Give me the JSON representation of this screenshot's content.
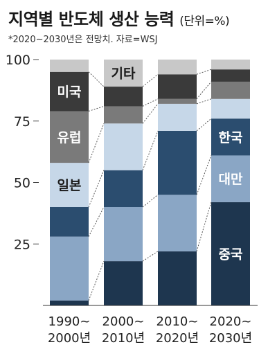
{
  "chart_data": {
    "type": "bar",
    "stacked": true,
    "title": "지역별 반도체 생산 능력",
    "title_unit": "(단위=%)",
    "note": "*2020~2030년은 전망치. 자료=WSJ",
    "categories": [
      [
        "1990~",
        "2000년"
      ],
      [
        "2000~",
        "2010년"
      ],
      [
        "2010~",
        "2020년"
      ],
      [
        "2020~",
        "2030년"
      ]
    ],
    "ylim": [
      0,
      100
    ],
    "yticks": [
      "100",
      "75",
      "50",
      "25"
    ],
    "series": [
      {
        "name": "중국",
        "color": "#1e364f",
        "values": [
          2,
          18,
          22,
          42
        ]
      },
      {
        "name": "대만",
        "color": "#8aa6c5",
        "values": [
          26,
          22,
          23,
          19
        ]
      },
      {
        "name": "한국",
        "color": "#2b4d6f",
        "values": [
          12,
          15,
          26,
          15
        ]
      },
      {
        "name": "일본",
        "color": "#c6d7e8",
        "values": [
          18,
          19,
          11,
          8
        ]
      },
      {
        "name": "유럽",
        "color": "#7a7a7a",
        "values": [
          21,
          7,
          2,
          7
        ]
      },
      {
        "name": "미국",
        "color": "#3a3a3a",
        "values": [
          16,
          8,
          10,
          5
        ]
      },
      {
        "name": "기타",
        "color": "#c8c8c8",
        "values": [
          5,
          11,
          6,
          4
        ]
      }
    ],
    "segment_labels": [
      {
        "series": 5,
        "category": 0,
        "text": "미국"
      },
      {
        "series": 4,
        "category": 0,
        "text": "유럽"
      },
      {
        "series": 3,
        "category": 0,
        "text": "일본"
      },
      {
        "series": 6,
        "category": 1,
        "text": "기타"
      },
      {
        "series": 2,
        "category": 3,
        "text": "한국"
      },
      {
        "series": 1,
        "category": 3,
        "text": "대만"
      },
      {
        "series": 0,
        "category": 3,
        "text": "중국"
      }
    ]
  }
}
